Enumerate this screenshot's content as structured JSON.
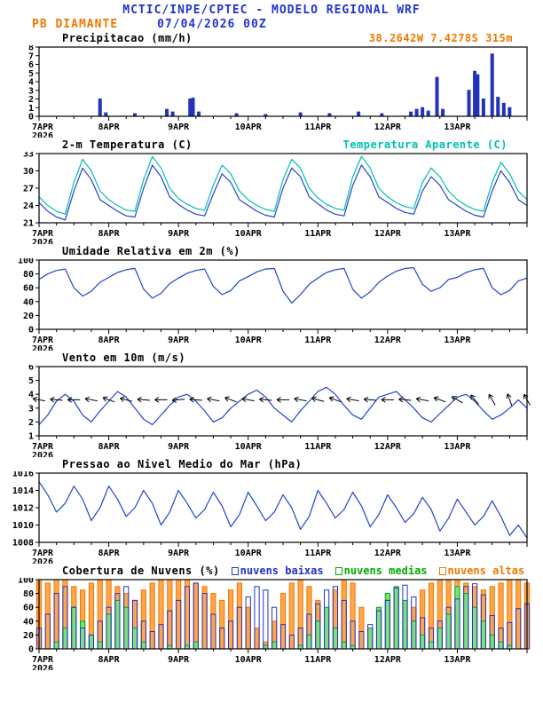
{
  "header": {
    "line1": "MCTIC/INPE/CPTEC - MODELO REGIONAL WRF",
    "station": "PB DIAMANTE",
    "datetime": "07/04/2026 00Z",
    "location": "38.2642W 7.4278S 315m"
  },
  "colors": {
    "header_blue": "#2233cc",
    "orange": "#f07800",
    "cyan": "#00c0ae",
    "line_blue": "#2244cc",
    "green": "#00aa00",
    "black": "#000000"
  },
  "x_axis": {
    "labels": [
      "7APR",
      "8APR",
      "9APR",
      "10APR",
      "11APR",
      "12APR",
      "13APR"
    ],
    "year": "2026",
    "hours_total": 168
  },
  "chart_data": [
    {
      "type": "bar",
      "title": "Precipitacao (mm/h)",
      "ylim": [
        0,
        8
      ],
      "yticks": [
        0,
        1,
        2,
        3,
        4,
        5,
        6,
        7,
        8
      ],
      "color": "#2233bb",
      "bars": [
        {
          "t": 21,
          "v": 2.0
        },
        {
          "t": 23,
          "v": 0.4
        },
        {
          "t": 33,
          "v": 0.3
        },
        {
          "t": 44,
          "v": 0.8
        },
        {
          "t": 46,
          "v": 0.5
        },
        {
          "t": 52,
          "v": 2.0
        },
        {
          "t": 53,
          "v": 2.1
        },
        {
          "t": 55,
          "v": 0.5
        },
        {
          "t": 68,
          "v": 0.3
        },
        {
          "t": 78,
          "v": 0.2
        },
        {
          "t": 90,
          "v": 0.4
        },
        {
          "t": 100,
          "v": 0.3
        },
        {
          "t": 110,
          "v": 0.5
        },
        {
          "t": 118,
          "v": 0.3
        },
        {
          "t": 128,
          "v": 0.5
        },
        {
          "t": 130,
          "v": 0.8
        },
        {
          "t": 132,
          "v": 1.0
        },
        {
          "t": 134,
          "v": 0.6
        },
        {
          "t": 137,
          "v": 4.5
        },
        {
          "t": 139,
          "v": 0.8
        },
        {
          "t": 148,
          "v": 3.0
        },
        {
          "t": 150,
          "v": 5.2
        },
        {
          "t": 151,
          "v": 4.8
        },
        {
          "t": 153,
          "v": 2.0
        },
        {
          "t": 156,
          "v": 7.2
        },
        {
          "t": 158,
          "v": 2.2
        },
        {
          "t": 160,
          "v": 1.5
        },
        {
          "t": 162,
          "v": 1.0
        }
      ]
    },
    {
      "type": "line",
      "title": "2-m Temperatura (C)",
      "ylim": [
        21,
        33
      ],
      "yticks": [
        21,
        24,
        27,
        30,
        33
      ],
      "x_step": 3,
      "series": [
        {
          "name": "2-m Temperatura (C)",
          "color": "#2244cc",
          "values": [
            24.5,
            23.0,
            22.0,
            21.5,
            26.5,
            30.5,
            28.5,
            25.0,
            24.0,
            23.0,
            22.2,
            22.0,
            27.0,
            31.0,
            29.0,
            25.5,
            24.2,
            23.2,
            22.5,
            22.2,
            26.0,
            29.5,
            28.0,
            25.0,
            24.0,
            23.0,
            22.3,
            22.0,
            27.0,
            30.5,
            29.0,
            25.5,
            24.3,
            23.2,
            22.5,
            22.2,
            27.5,
            31.0,
            29.0,
            25.5,
            24.5,
            23.5,
            22.8,
            22.5,
            26.5,
            29.0,
            27.5,
            25.0,
            24.0,
            23.0,
            22.3,
            22.0,
            26.5,
            30.0,
            28.0,
            25.0,
            24.0
          ]
        },
        {
          "name": "Temperatura Aparente (C)",
          "color": "#00c0ae",
          "values": [
            25.5,
            24.0,
            23.0,
            22.5,
            28.0,
            32.0,
            30.0,
            26.5,
            25.0,
            24.0,
            23.2,
            23.0,
            28.5,
            32.5,
            30.5,
            27.0,
            25.2,
            24.2,
            23.5,
            23.2,
            27.5,
            31.0,
            29.5,
            26.5,
            25.0,
            24.0,
            23.3,
            23.0,
            28.5,
            32.0,
            30.5,
            27.0,
            25.3,
            24.2,
            23.5,
            23.2,
            29.0,
            32.5,
            30.5,
            27.0,
            25.5,
            24.5,
            23.8,
            23.5,
            28.0,
            30.5,
            29.0,
            26.5,
            25.0,
            24.0,
            23.3,
            23.0,
            28.0,
            31.5,
            29.5,
            26.5,
            25.0
          ]
        }
      ]
    },
    {
      "type": "line",
      "title": "Umidade Relativa em 2m (%)",
      "ylim": [
        0,
        100
      ],
      "yticks": [
        0,
        20,
        40,
        60,
        80,
        100
      ],
      "x_step": 3,
      "series": [
        {
          "name": "Umidade Relativa em 2m",
          "color": "#2244cc",
          "values": [
            72,
            80,
            85,
            87,
            60,
            48,
            55,
            68,
            75,
            82,
            86,
            88,
            58,
            45,
            52,
            66,
            74,
            81,
            85,
            87,
            62,
            50,
            56,
            70,
            76,
            83,
            87,
            88,
            55,
            38,
            50,
            65,
            74,
            82,
            86,
            88,
            58,
            45,
            54,
            68,
            77,
            84,
            88,
            89,
            65,
            55,
            60,
            72,
            75,
            82,
            86,
            88,
            60,
            50,
            56,
            70,
            74
          ]
        }
      ]
    },
    {
      "type": "wind",
      "title": "Vento em 10m (m/s)",
      "ylim": [
        1,
        6
      ],
      "yticks": [
        1,
        2,
        3,
        4,
        5,
        6
      ],
      "x_step": 3,
      "barb_step": 6,
      "barb_y": 3.6,
      "barb_color": "#000000",
      "barb_dirs": [
        100,
        95,
        90,
        100,
        110,
        105,
        95,
        90,
        85,
        95,
        100,
        110,
        100,
        95,
        90,
        100,
        105,
        110,
        100,
        95,
        90,
        95,
        100,
        110,
        120,
        140,
        150,
        160,
        150
      ],
      "series": [
        {
          "name": "Velocidade do vento",
          "color": "#2244cc",
          "values": [
            1.8,
            2.5,
            3.5,
            4.0,
            3.5,
            2.5,
            2.0,
            2.8,
            3.5,
            4.2,
            3.8,
            3.0,
            2.2,
            1.8,
            2.5,
            3.2,
            3.8,
            4.0,
            3.5,
            2.8,
            2.0,
            2.3,
            3.0,
            3.5,
            4.0,
            4.3,
            3.8,
            3.0,
            2.5,
            2.0,
            2.8,
            3.5,
            4.2,
            4.5,
            4.0,
            3.2,
            2.5,
            2.2,
            3.0,
            3.8,
            4.0,
            4.2,
            3.6,
            3.0,
            2.3,
            2.0,
            2.6,
            3.2,
            3.8,
            4.0,
            3.5,
            2.8,
            2.2,
            2.5,
            3.0,
            3.6,
            3.0
          ]
        }
      ]
    },
    {
      "type": "line",
      "title": "Pressao ao Nivel Medio do Mar (hPa)",
      "ylim": [
        1008,
        1016
      ],
      "yticks": [
        1008,
        1010,
        1012,
        1014,
        1016
      ],
      "x_step": 3,
      "series": [
        {
          "name": "Pressao ao nivel medio do mar",
          "color": "#2244cc",
          "values": [
            1015.0,
            1013.5,
            1011.5,
            1012.5,
            1014.5,
            1013.0,
            1010.5,
            1012.0,
            1014.5,
            1013.0,
            1011.0,
            1012.0,
            1014.0,
            1012.5,
            1010.0,
            1011.5,
            1014.0,
            1012.5,
            1010.8,
            1011.8,
            1013.8,
            1012.2,
            1009.8,
            1011.2,
            1013.8,
            1012.2,
            1010.5,
            1011.5,
            1013.5,
            1012.0,
            1009.5,
            1011.0,
            1014.0,
            1012.5,
            1010.8,
            1011.8,
            1013.8,
            1012.2,
            1009.8,
            1011.2,
            1013.5,
            1012.0,
            1010.3,
            1011.3,
            1013.2,
            1011.8,
            1009.3,
            1010.8,
            1013.0,
            1011.5,
            1010.0,
            1011.0,
            1012.8,
            1011.0,
            1008.8,
            1010.0,
            1008.5
          ]
        }
      ]
    },
    {
      "type": "cloud-bars",
      "title": "Cobertura de Nuvens (%)",
      "ylim": [
        0,
        100
      ],
      "yticks": [
        0,
        20,
        40,
        60,
        80,
        100
      ],
      "x_step": 3,
      "series": [
        {
          "name": "nuvens baixas",
          "color": "#2233cc",
          "fill": "none",
          "values": [
            30,
            50,
            80,
            90,
            60,
            30,
            20,
            40,
            60,
            80,
            90,
            70,
            40,
            25,
            35,
            55,
            70,
            90,
            95,
            80,
            50,
            30,
            40,
            60,
            75,
            90,
            85,
            60,
            35,
            20,
            30,
            50,
            65,
            85,
            90,
            70,
            40,
            25,
            35,
            55,
            70,
            88,
            92,
            75,
            45,
            30,
            40,
            60,
            72,
            90,
            94,
            78,
            48,
            30,
            38,
            58,
            65
          ]
        },
        {
          "name": "nuvens medias",
          "color": "#00aa00",
          "fill": "#80dd80",
          "values": [
            0,
            0,
            10,
            30,
            60,
            40,
            20,
            10,
            50,
            70,
            60,
            30,
            10,
            0,
            0,
            5,
            0,
            5,
            10,
            0,
            0,
            0,
            0,
            0,
            0,
            0,
            5,
            10,
            0,
            0,
            5,
            20,
            40,
            60,
            30,
            10,
            5,
            0,
            30,
            60,
            80,
            90,
            70,
            40,
            20,
            10,
            30,
            50,
            90,
            80,
            60,
            40,
            20,
            10,
            5,
            0,
            0
          ]
        },
        {
          "name": "nuvens altas",
          "color": "#f07800",
          "fill": "#ffa64d",
          "values": [
            100,
            95,
            100,
            100,
            90,
            85,
            95,
            100,
            100,
            90,
            80,
            70,
            85,
            95,
            100,
            100,
            100,
            100,
            95,
            90,
            80,
            70,
            85,
            95,
            60,
            30,
            10,
            40,
            80,
            95,
            100,
            90,
            70,
            50,
            85,
            100,
            95,
            60,
            20,
            10,
            5,
            10,
            30,
            60,
            85,
            95,
            100,
            100,
            100,
            95,
            90,
            85,
            90,
            95,
            100,
            100,
            95
          ]
        }
      ]
    }
  ]
}
